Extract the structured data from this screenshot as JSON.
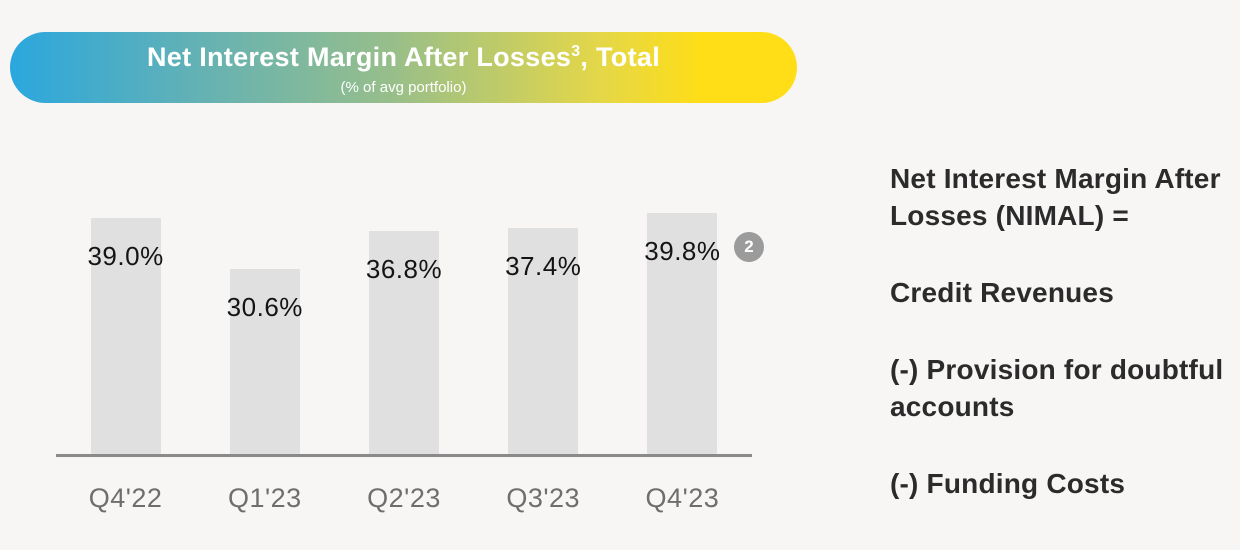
{
  "header": {
    "title_main": "Net Interest Margin After Losses",
    "title_sup": "3",
    "title_tail": ", Total",
    "subtitle": "(% of avg portfolio)",
    "gradient_start": "#2BA7DE",
    "gradient_end": "#FFDE17"
  },
  "chart_data": {
    "type": "bar",
    "title": "Net Interest Margin After Losses³, Total",
    "subtitle": "(% of avg portfolio)",
    "categories": [
      "Q4'22",
      "Q1'23",
      "Q2'23",
      "Q3'23",
      "Q4'23"
    ],
    "values": [
      39.0,
      30.6,
      36.8,
      37.4,
      39.8
    ],
    "value_labels": [
      "39.0%",
      "30.6%",
      "36.8%",
      "37.4%",
      "39.8%"
    ],
    "xlabel": "",
    "ylabel": "% of avg portfolio",
    "ylim": [
      0,
      42
    ],
    "grid": false,
    "legend": false,
    "bar_color": "#E0E0E0",
    "axis_color": "#8A8A8A",
    "value_label_color": "#141414",
    "tick_label_color": "#6E6E6E"
  },
  "badge": {
    "label": "2",
    "color": "#9B9B9B"
  },
  "note": {
    "paragraphs": [
      "Net Interest Margin After Losses (NIMAL) =",
      "Credit Revenues",
      "(-) Provision for doubtful accounts",
      "(-) Funding Costs"
    ]
  }
}
